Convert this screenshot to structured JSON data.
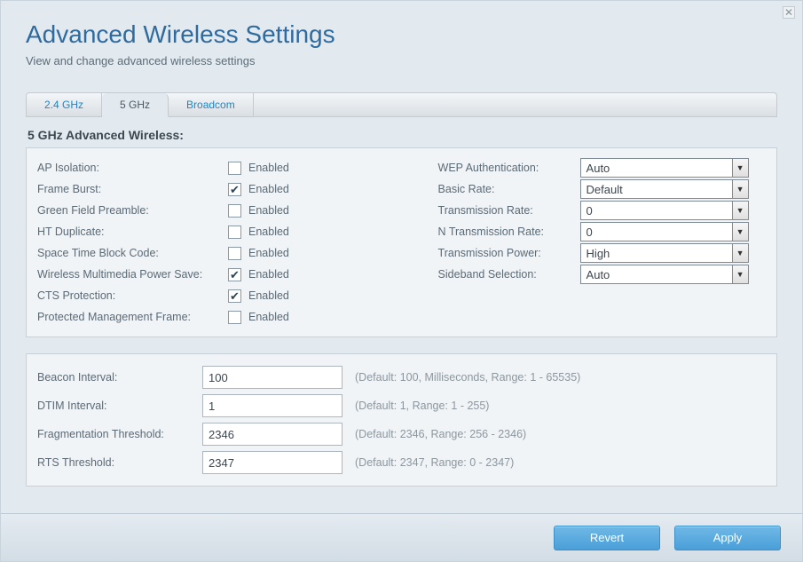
{
  "header": {
    "title": "Advanced Wireless Settings",
    "subtitle": "View and change advanced wireless settings"
  },
  "tabs": {
    "items": [
      "2.4 GHz",
      "5 GHz",
      "Broadcom"
    ],
    "active_index": 1
  },
  "section_title": "5 GHz Advanced Wireless:",
  "checkbox_caption": "Enabled",
  "left_checks": [
    {
      "label": "AP Isolation:",
      "checked": false
    },
    {
      "label": "Frame Burst:",
      "checked": true
    },
    {
      "label": "Green Field Preamble:",
      "checked": false
    },
    {
      "label": "HT Duplicate:",
      "checked": false
    },
    {
      "label": "Space Time Block Code:",
      "checked": false
    },
    {
      "label": "Wireless Multimedia Power Save:",
      "checked": true
    },
    {
      "label": "CTS Protection:",
      "checked": true
    },
    {
      "label": "Protected Management Frame:",
      "checked": false
    }
  ],
  "right_selects": [
    {
      "label": "WEP Authentication:",
      "value": "Auto"
    },
    {
      "label": "Basic Rate:",
      "value": "Default"
    },
    {
      "label": "Transmission Rate:",
      "value": "0"
    },
    {
      "label": "N Transmission Rate:",
      "value": "0"
    },
    {
      "label": "Transmission Power:",
      "value": "High"
    },
    {
      "label": "Sideband Selection:",
      "value": "Auto"
    }
  ],
  "numeric_rows": [
    {
      "label": "Beacon Interval:",
      "value": "100",
      "hint": "(Default: 100, Milliseconds, Range: 1 - 65535)"
    },
    {
      "label": "DTIM Interval:",
      "value": "1",
      "hint": "(Default: 1, Range: 1 - 255)"
    },
    {
      "label": "Fragmentation Threshold:",
      "value": "2346",
      "hint": "(Default: 2346, Range: 256 - 2346)"
    },
    {
      "label": "RTS Threshold:",
      "value": "2347",
      "hint": "(Default: 2347, Range: 0 - 2347)"
    }
  ],
  "footer": {
    "revert": "Revert",
    "apply": "Apply"
  },
  "colors": {
    "page_bg": "#e2eaf0",
    "title_color": "#2f6b9f",
    "panel_bg": "#f0f4f7",
    "border": "#c9d1d8",
    "link": "#1d86c8",
    "btn_grad_top": "#6fb8e6",
    "btn_grad_bottom": "#4a9fd8"
  }
}
